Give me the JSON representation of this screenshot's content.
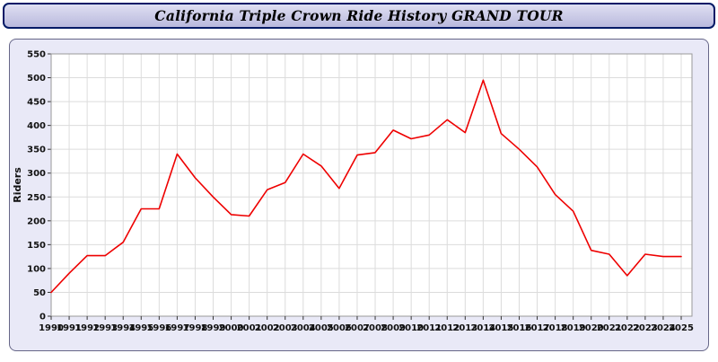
{
  "page": {
    "title": "California Triple Crown Ride History GRAND TOUR"
  },
  "theme": {
    "line_color": "#ee0000",
    "panel_bg": "#e9e9f7",
    "plot_bg": "#ffffff",
    "grid_color": "#dcdcdc",
    "plot_border": "#999999",
    "tick_color": "#333333",
    "panel_border": "#666688",
    "titlebar_bg_top": "#dfdff2",
    "titlebar_bg_bottom": "#b9b9dd",
    "titlebar_border": "#001a66"
  },
  "chart_data": {
    "type": "line",
    "title": "California Triple Crown Ride History GRAND TOUR",
    "xlabel": "",
    "ylabel": "Riders",
    "ylim": [
      0,
      550
    ],
    "ytick_step": 50,
    "grid": true,
    "legend_position": "none",
    "x": [
      1990,
      1991,
      1992,
      1993,
      1994,
      1995,
      1996,
      1997,
      1998,
      1999,
      2000,
      2001,
      2002,
      2003,
      2004,
      2005,
      2006,
      2007,
      2008,
      2009,
      2010,
      2011,
      2012,
      2013,
      2014,
      2015,
      2016,
      2017,
      2018,
      2019,
      2020,
      2021,
      2022,
      2023,
      2024,
      2025
    ],
    "values": [
      50,
      90,
      127,
      127,
      155,
      225,
      225,
      340,
      290,
      250,
      213,
      210,
      265,
      280,
      340,
      315,
      268,
      338,
      343,
      390,
      372,
      380,
      412,
      385,
      495,
      383,
      350,
      313,
      255,
      220,
      138,
      130,
      85,
      130,
      125,
      125
    ]
  }
}
